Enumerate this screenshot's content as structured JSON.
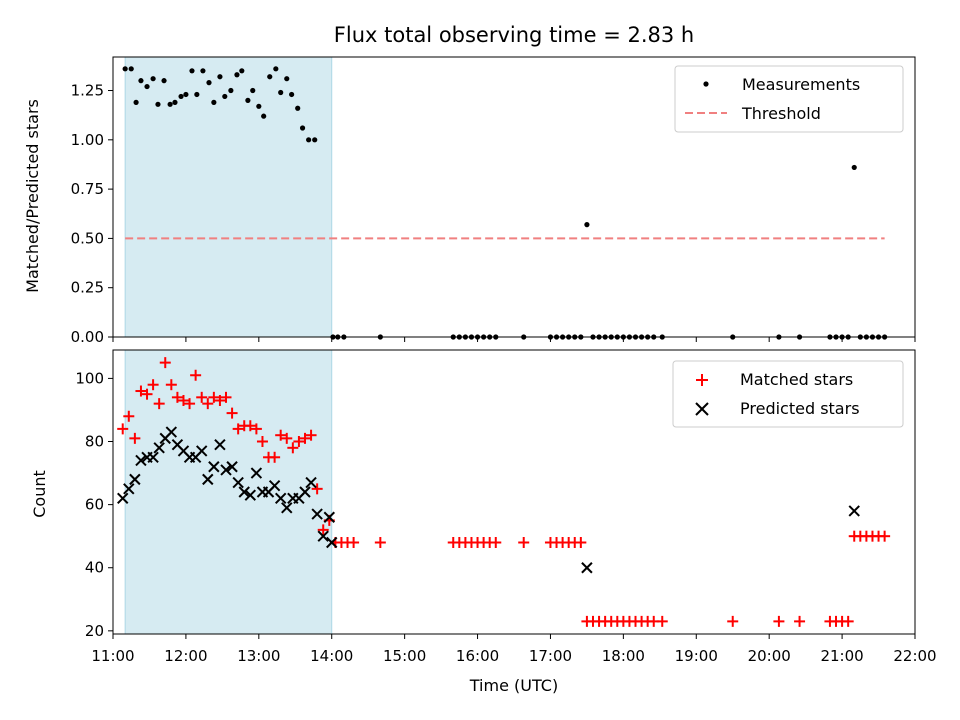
{
  "chart_data": [
    {
      "type": "scatter",
      "title": "Flux total observing time = 2.83 h",
      "xlabel": "",
      "ylabel": "Matched/Predicted stars",
      "xlim": [
        "11:00",
        "22:00"
      ],
      "ylim": [
        0,
        1.42
      ],
      "yticks": [
        "0.00",
        "0.25",
        "0.50",
        "0.75",
        "1.00",
        "1.25"
      ],
      "shaded_region": [
        "11:10",
        "14:00"
      ],
      "legend_position": "top-right",
      "series": [
        {
          "name": "Measurements",
          "marker": "dot",
          "color": "#000000",
          "points": [
            [
              "11:10",
              1.36
            ],
            [
              "11:15",
              1.36
            ],
            [
              "11:19",
              1.19
            ],
            [
              "11:23",
              1.3
            ],
            [
              "11:28",
              1.27
            ],
            [
              "11:33",
              1.31
            ],
            [
              "11:37",
              1.18
            ],
            [
              "11:42",
              1.3
            ],
            [
              "11:47",
              1.18
            ],
            [
              "11:51",
              1.19
            ],
            [
              "11:56",
              1.22
            ],
            [
              "12:00",
              1.23
            ],
            [
              "12:05",
              1.35
            ],
            [
              "12:09",
              1.23
            ],
            [
              "12:14",
              1.35
            ],
            [
              "12:19",
              1.29
            ],
            [
              "12:23",
              1.19
            ],
            [
              "12:28",
              1.32
            ],
            [
              "12:32",
              1.22
            ],
            [
              "12:37",
              1.25
            ],
            [
              "12:42",
              1.33
            ],
            [
              "12:46",
              1.35
            ],
            [
              "12:51",
              1.2
            ],
            [
              "12:55",
              1.25
            ],
            [
              "13:00",
              1.17
            ],
            [
              "13:04",
              1.12
            ],
            [
              "13:09",
              1.32
            ],
            [
              "13:14",
              1.36
            ],
            [
              "13:18",
              1.24
            ],
            [
              "13:23",
              1.31
            ],
            [
              "13:27",
              1.23
            ],
            [
              "13:32",
              1.16
            ],
            [
              "13:36",
              1.06
            ],
            [
              "13:41",
              1.0
            ],
            [
              "13:46",
              1.0
            ],
            [
              "14:01",
              0
            ],
            [
              "14:05",
              0
            ],
            [
              "14:10",
              0
            ],
            [
              "14:40",
              0
            ],
            [
              "15:40",
              0
            ],
            [
              "15:45",
              0
            ],
            [
              "15:50",
              0
            ],
            [
              "15:55",
              0
            ],
            [
              "16:00",
              0
            ],
            [
              "16:05",
              0
            ],
            [
              "16:10",
              0
            ],
            [
              "16:15",
              0
            ],
            [
              "16:38",
              0
            ],
            [
              "17:00",
              0
            ],
            [
              "17:05",
              0
            ],
            [
              "17:10",
              0
            ],
            [
              "17:15",
              0
            ],
            [
              "17:20",
              0
            ],
            [
              "17:25",
              0
            ],
            [
              "17:30",
              0.57
            ],
            [
              "17:35",
              0
            ],
            [
              "17:40",
              0
            ],
            [
              "17:45",
              0
            ],
            [
              "17:50",
              0
            ],
            [
              "17:55",
              0
            ],
            [
              "18:00",
              0
            ],
            [
              "18:05",
              0
            ],
            [
              "18:10",
              0
            ],
            [
              "18:15",
              0
            ],
            [
              "18:20",
              0
            ],
            [
              "18:25",
              0
            ],
            [
              "18:32",
              0
            ],
            [
              "19:30",
              0
            ],
            [
              "20:08",
              0
            ],
            [
              "20:25",
              0
            ],
            [
              "20:50",
              0
            ],
            [
              "20:55",
              0
            ],
            [
              "21:00",
              0
            ],
            [
              "21:05",
              0
            ],
            [
              "21:10",
              0.86
            ],
            [
              "21:15",
              0
            ],
            [
              "21:20",
              0
            ],
            [
              "21:25",
              0
            ],
            [
              "21:30",
              0
            ],
            [
              "21:35",
              0
            ]
          ]
        },
        {
          "name": "Threshold",
          "marker": "dashed-line",
          "color": "#f08080",
          "points": [
            [
              "11:10",
              0.5
            ],
            [
              "21:35",
              0.5
            ]
          ]
        }
      ]
    },
    {
      "type": "scatter",
      "title": "",
      "xlabel": "Time (UTC)",
      "ylabel": "Count",
      "xlim": [
        "11:00",
        "22:00"
      ],
      "ylim": [
        19,
        109
      ],
      "yticks": [
        "20",
        "40",
        "60",
        "80",
        "100"
      ],
      "xticks": [
        "11:00",
        "12:00",
        "13:00",
        "14:00",
        "15:00",
        "16:00",
        "17:00",
        "18:00",
        "19:00",
        "20:00",
        "21:00",
        "22:00"
      ],
      "shaded_region": [
        "11:10",
        "14:00"
      ],
      "legend_position": "top-right",
      "series": [
        {
          "name": "Matched stars",
          "marker": "plus",
          "color": "#ff0000",
          "points": [
            [
              "11:08",
              84
            ],
            [
              "11:13",
              88
            ],
            [
              "11:18",
              81
            ],
            [
              "11:23",
              96
            ],
            [
              "11:28",
              95
            ],
            [
              "11:33",
              98
            ],
            [
              "11:38",
              92
            ],
            [
              "11:43",
              105
            ],
            [
              "11:48",
              98
            ],
            [
              "11:53",
              94
            ],
            [
              "11:58",
              93
            ],
            [
              "12:03",
              92
            ],
            [
              "12:08",
              101
            ],
            [
              "12:13",
              94
            ],
            [
              "12:18",
              92
            ],
            [
              "12:23",
              94
            ],
            [
              "12:28",
              93
            ],
            [
              "12:33",
              94
            ],
            [
              "12:38",
              89
            ],
            [
              "12:43",
              84
            ],
            [
              "12:48",
              85
            ],
            [
              "12:53",
              85
            ],
            [
              "12:58",
              84
            ],
            [
              "13:03",
              80
            ],
            [
              "13:08",
              75
            ],
            [
              "13:13",
              75
            ],
            [
              "13:18",
              82
            ],
            [
              "13:23",
              81
            ],
            [
              "13:28",
              78
            ],
            [
              "13:33",
              80
            ],
            [
              "13:38",
              81
            ],
            [
              "13:43",
              82
            ],
            [
              "13:48",
              65
            ],
            [
              "13:53",
              52
            ],
            [
              "13:58",
              55
            ],
            [
              "14:03",
              48
            ],
            [
              "14:08",
              48
            ],
            [
              "14:13",
              48
            ],
            [
              "14:18",
              48
            ],
            [
              "14:40",
              48
            ],
            [
              "15:40",
              48
            ],
            [
              "15:45",
              48
            ],
            [
              "15:50",
              48
            ],
            [
              "15:55",
              48
            ],
            [
              "16:00",
              48
            ],
            [
              "16:05",
              48
            ],
            [
              "16:10",
              48
            ],
            [
              "16:15",
              48
            ],
            [
              "16:38",
              48
            ],
            [
              "17:00",
              48
            ],
            [
              "17:05",
              48
            ],
            [
              "17:10",
              48
            ],
            [
              "17:15",
              48
            ],
            [
              "17:20",
              48
            ],
            [
              "17:25",
              48
            ],
            [
              "17:30",
              23
            ],
            [
              "17:35",
              23
            ],
            [
              "17:40",
              23
            ],
            [
              "17:45",
              23
            ],
            [
              "17:50",
              23
            ],
            [
              "17:55",
              23
            ],
            [
              "18:00",
              23
            ],
            [
              "18:05",
              23
            ],
            [
              "18:10",
              23
            ],
            [
              "18:15",
              23
            ],
            [
              "18:20",
              23
            ],
            [
              "18:25",
              23
            ],
            [
              "18:32",
              23
            ],
            [
              "19:30",
              23
            ],
            [
              "20:08",
              23
            ],
            [
              "20:25",
              23
            ],
            [
              "20:50",
              23
            ],
            [
              "20:55",
              23
            ],
            [
              "21:00",
              23
            ],
            [
              "21:05",
              23
            ],
            [
              "21:10",
              50
            ],
            [
              "21:15",
              50
            ],
            [
              "21:20",
              50
            ],
            [
              "21:25",
              50
            ],
            [
              "21:30",
              50
            ],
            [
              "21:35",
              50
            ]
          ]
        },
        {
          "name": "Predicted stars",
          "marker": "x",
          "color": "#000000",
          "points": [
            [
              "11:08",
              62
            ],
            [
              "11:13",
              65
            ],
            [
              "11:18",
              68
            ],
            [
              "11:23",
              74
            ],
            [
              "11:28",
              75
            ],
            [
              "11:33",
              75
            ],
            [
              "11:38",
              78
            ],
            [
              "11:43",
              81
            ],
            [
              "11:48",
              83
            ],
            [
              "11:53",
              79
            ],
            [
              "11:58",
              77
            ],
            [
              "12:03",
              75
            ],
            [
              "12:08",
              75
            ],
            [
              "12:13",
              77
            ],
            [
              "12:18",
              68
            ],
            [
              "12:23",
              72
            ],
            [
              "12:28",
              79
            ],
            [
              "12:33",
              71
            ],
            [
              "12:38",
              72
            ],
            [
              "12:43",
              67
            ],
            [
              "12:48",
              64
            ],
            [
              "12:53",
              63
            ],
            [
              "12:58",
              70
            ],
            [
              "13:03",
              64
            ],
            [
              "13:08",
              64
            ],
            [
              "13:13",
              66
            ],
            [
              "13:18",
              62
            ],
            [
              "13:23",
              59
            ],
            [
              "13:28",
              62
            ],
            [
              "13:33",
              62
            ],
            [
              "13:38",
              64
            ],
            [
              "13:43",
              67
            ],
            [
              "13:48",
              57
            ],
            [
              "13:53",
              50
            ],
            [
              "13:58",
              56
            ],
            [
              "14:00",
              48
            ],
            [
              "17:30",
              40
            ],
            [
              "21:10",
              58
            ]
          ]
        }
      ]
    }
  ]
}
